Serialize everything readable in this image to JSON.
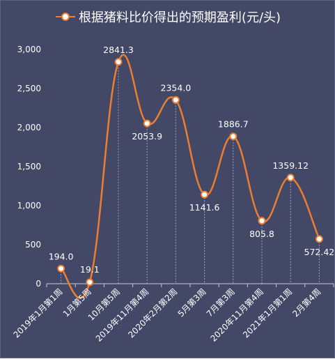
{
  "chart_data": {
    "type": "line",
    "title": "",
    "xlabel": "",
    "ylabel": "",
    "ylim": [
      0,
      3000
    ],
    "yticks": [
      "0",
      "500",
      "1,000",
      "1,500",
      "2,000",
      "2,500",
      "3,000"
    ],
    "categories": [
      "2019年1月第1周",
      "1月第5周",
      "10月第5周",
      "2019年11月第4周",
      "2020年2月第2周",
      "5月第3周",
      "7月第3周",
      "2020年11月第4周",
      "2021年1月第1周",
      "2月第4周"
    ],
    "series": [
      {
        "name": "根据猪料比价得出的预期盈利(元/头)",
        "values": [
          194.0,
          19.1,
          2841.3,
          2053.9,
          2354.0,
          1141.6,
          1886.7,
          805.8,
          1359.12,
          572.42
        ],
        "labels": [
          "194.0",
          "19.1",
          "2841.3",
          "2053.9",
          "2354.0",
          "1141.6",
          "1886.7",
          "805.8",
          "1359.12",
          "572.42"
        ]
      }
    ],
    "grid": false,
    "legend": "top",
    "colors": {
      "background": "#424866",
      "line": "#ed7d31",
      "text": "#ffffff",
      "axis": "#c9cbd6",
      "dropline": "#9fa3b8"
    }
  }
}
